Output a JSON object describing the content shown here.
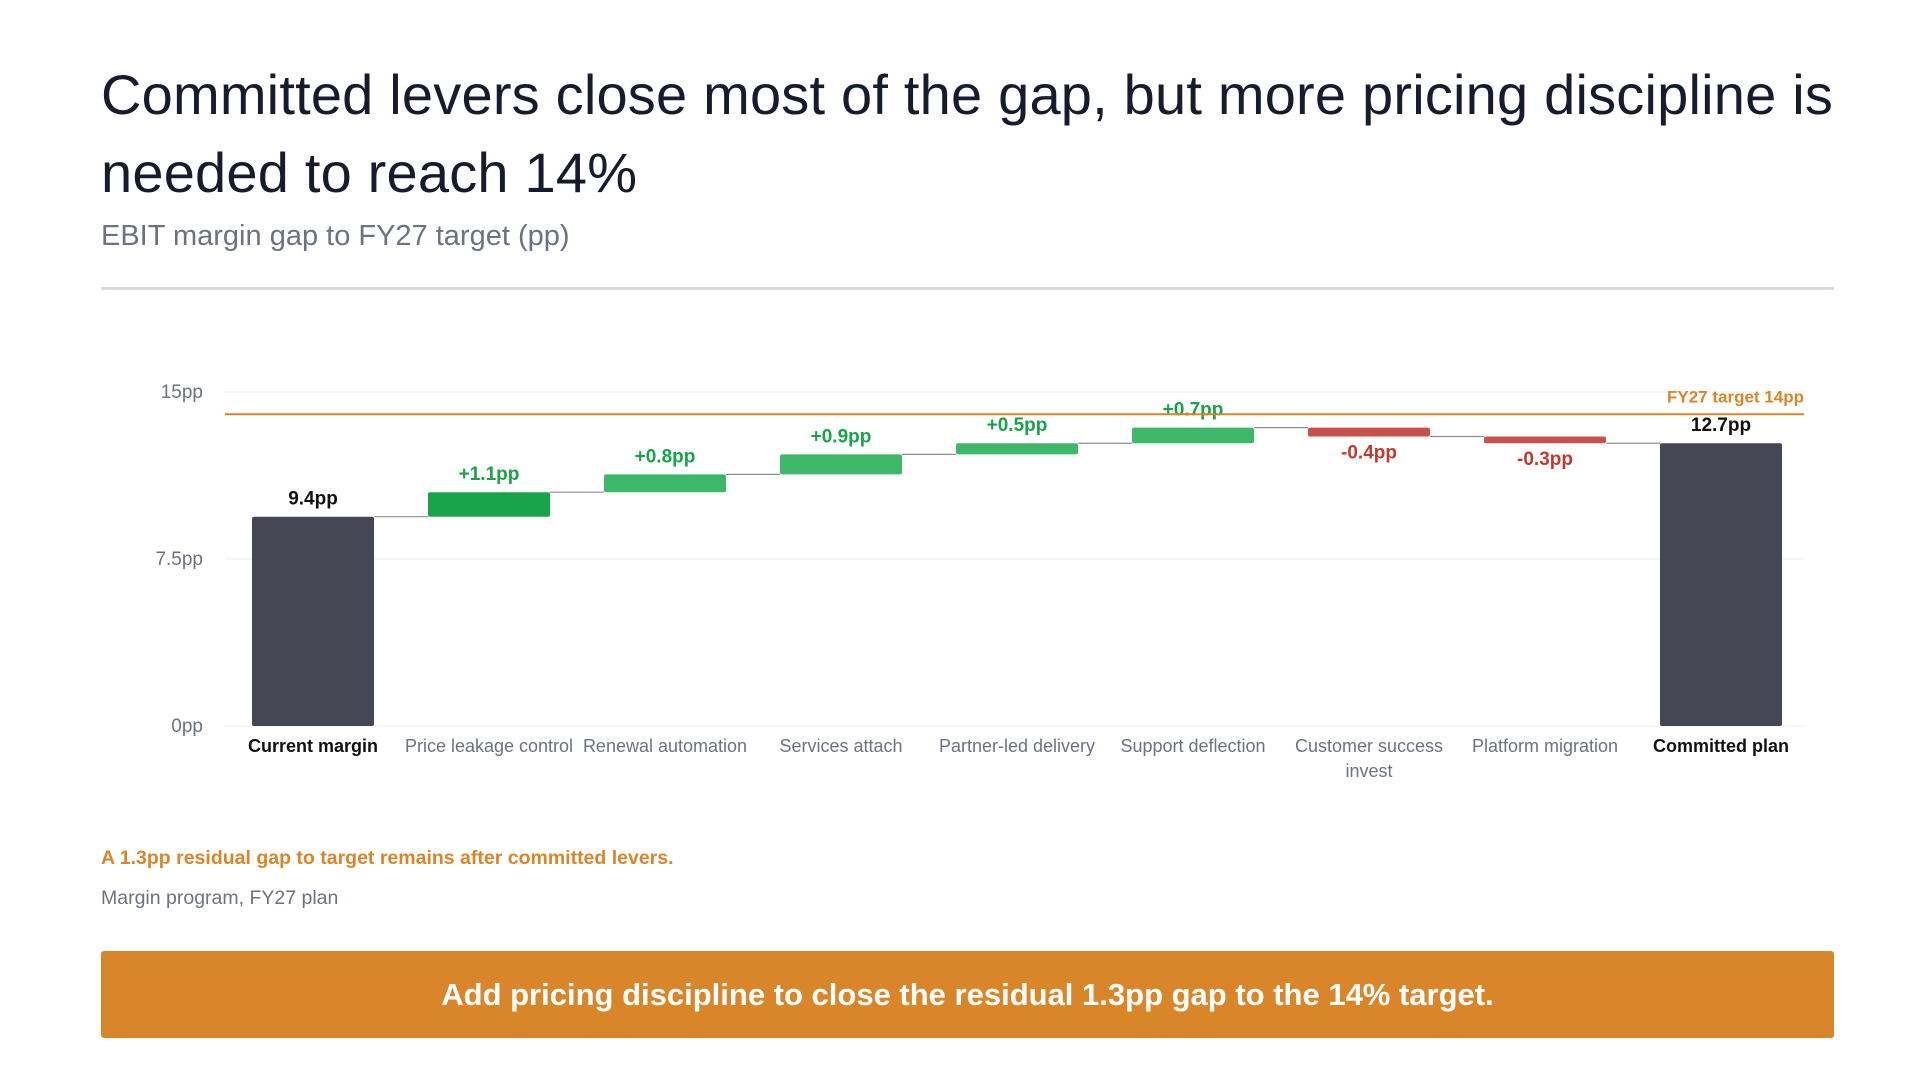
{
  "header": {
    "title": "Committed levers close most of the gap, but more pricing discipline is needed to reach 14%",
    "subtitle": "EBIT margin gap to FY27 target (pp)"
  },
  "footer": {
    "note": "A 1.3pp residual gap to target remains after committed levers.",
    "source": "Margin program, FY27 plan",
    "cta_label": "Add pricing discipline to close the residual 1.3pp gap to the 14% target."
  },
  "colors": {
    "total": "#454854",
    "increase_primary": "#1aa34a",
    "increase": "#3db86b",
    "decrease": "#c8524a",
    "increase_label": "#17a34a",
    "decrease_label": "#c0392b",
    "target": "#d9852a",
    "connector": "#8d8f96"
  },
  "chart_data": {
    "type": "waterfall",
    "title": "EBIT margin gap to FY27 target (pp)",
    "ylim": [
      0,
      15
    ],
    "yticks": [
      {
        "value": 0,
        "label": "0pp"
      },
      {
        "value": 7.5,
        "label": "7.5pp"
      },
      {
        "value": 15,
        "label": "15pp"
      }
    ],
    "grid": true,
    "target": {
      "value": 14,
      "label": "FY27 target 14pp"
    },
    "steps": [
      {
        "category": [
          "Current margin"
        ],
        "kind": "total",
        "value": 9.4,
        "label": "9.4pp"
      },
      {
        "category": [
          "Price leakage control"
        ],
        "kind": "delta",
        "value": 1.1,
        "label": "+1.1pp"
      },
      {
        "category": [
          "Renewal automation"
        ],
        "kind": "delta",
        "value": 0.8,
        "label": "+0.8pp"
      },
      {
        "category": [
          "Services attach"
        ],
        "kind": "delta",
        "value": 0.9,
        "label": "+0.9pp"
      },
      {
        "category": [
          "Partner-led delivery"
        ],
        "kind": "delta",
        "value": 0.5,
        "label": "+0.5pp"
      },
      {
        "category": [
          "Support deflection"
        ],
        "kind": "delta",
        "value": 0.7,
        "label": "+0.7pp"
      },
      {
        "category": [
          "Customer success",
          "invest"
        ],
        "kind": "delta",
        "value": -0.4,
        "label": "-0.4pp"
      },
      {
        "category": [
          "Platform migration"
        ],
        "kind": "delta",
        "value": -0.3,
        "label": "-0.3pp"
      },
      {
        "category": [
          "Committed plan"
        ],
        "kind": "total",
        "value": 12.7,
        "label": "12.7pp"
      }
    ]
  }
}
